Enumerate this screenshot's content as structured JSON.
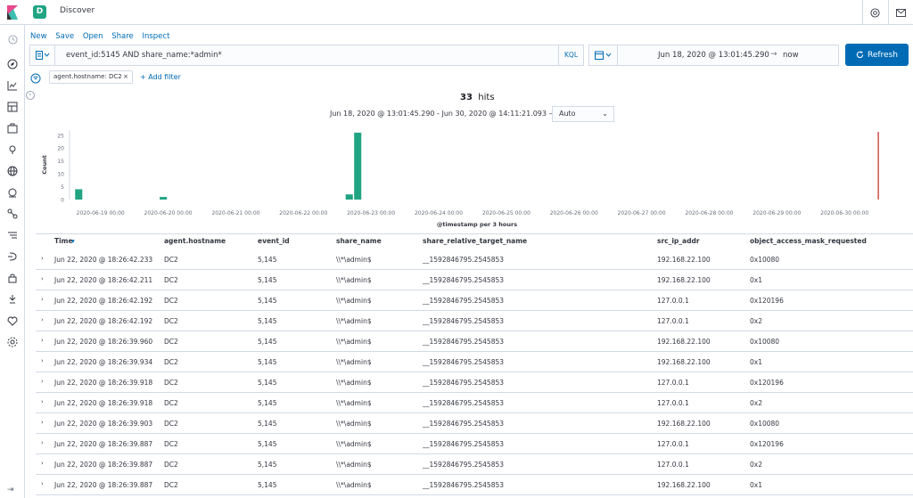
{
  "header": {
    "app_title": "Discover",
    "space_initial": "D"
  },
  "menu": {
    "items": [
      "New",
      "Save",
      "Open",
      "Share",
      "Inspect"
    ]
  },
  "query": {
    "text": "event_id:5145 AND share_name:*admin*",
    "language": "KQL"
  },
  "time": {
    "start": "Jun 18, 2020 @ 13:01:45.290",
    "arrow": "→",
    "end": "now",
    "refresh_label": "Refresh"
  },
  "filters": {
    "pill_label": "agent.hostname: DC2",
    "pill_remove": "×",
    "add_label": "+ Add filter"
  },
  "summary": {
    "hits_count": "33",
    "hits_label": "hits",
    "range": "Jun 18, 2020 @ 13:01:45.290 - Jun 30, 2020 @ 14:11:21.093 —",
    "interval": "Auto"
  },
  "chart_data": {
    "type": "bar",
    "ylabel": "Count",
    "xlabel": "@timestamp per 3 hours",
    "yticks": [
      0,
      5,
      10,
      15,
      20,
      25
    ],
    "ylim": [
      0,
      27
    ],
    "xticks": [
      "2020-06-19 00:00",
      "2020-06-20 00:00",
      "2020-06-21 00:00",
      "2020-06-22 00:00",
      "2020-06-23 00:00",
      "2020-06-24 00:00",
      "2020-06-25 00:00",
      "2020-06-26 00:00",
      "2020-06-27 00:00",
      "2020-06-28 00:00",
      "2020-06-29 00:00",
      "2020-06-30 00:00"
    ],
    "bar_color": "#20a482",
    "now_marker_color": "#bd271e",
    "x_start": "2020-06-18 13:01",
    "x_end": "2020-06-30 14:11",
    "now": "2020-06-30 12:00",
    "bars": [
      {
        "x": "2020-06-18 15:00",
        "value": 4
      },
      {
        "x": "2020-06-19 21:00",
        "value": 1
      },
      {
        "x": "2020-06-22 15:00",
        "value": 2
      },
      {
        "x": "2020-06-22 18:00",
        "value": 26
      }
    ]
  },
  "table": {
    "columns": [
      "Time",
      "agent.hostname",
      "event_id",
      "share_name",
      "share_relative_target_name",
      "src_ip_addr",
      "object_access_mask_requested"
    ],
    "sort_indicator": "▾",
    "rows": [
      [
        "Jun 22, 2020 @ 18:26:42.233",
        "DC2",
        "5,145",
        "\\\\*\\admin$",
        "__1592846795.2545853",
        "192.168.22.100",
        "0x10080"
      ],
      [
        "Jun 22, 2020 @ 18:26:42.211",
        "DC2",
        "5,145",
        "\\\\*\\admin$",
        "__1592846795.2545853",
        "192.168.22.100",
        "0x1"
      ],
      [
        "Jun 22, 2020 @ 18:26:42.192",
        "DC2",
        "5,145",
        "\\\\*\\admin$",
        "__1592846795.2545853",
        "127.0.0.1",
        "0x120196"
      ],
      [
        "Jun 22, 2020 @ 18:26:42.192",
        "DC2",
        "5,145",
        "\\\\*\\admin$",
        "__1592846795.2545853",
        "127.0.0.1",
        "0x2"
      ],
      [
        "Jun 22, 2020 @ 18:26:39.960",
        "DC2",
        "5,145",
        "\\\\*\\admin$",
        "__1592846795.2545853",
        "192.168.22.100",
        "0x10080"
      ],
      [
        "Jun 22, 2020 @ 18:26:39.934",
        "DC2",
        "5,145",
        "\\\\*\\admin$",
        "__1592846795.2545853",
        "192.168.22.100",
        "0x1"
      ],
      [
        "Jun 22, 2020 @ 18:26:39.918",
        "DC2",
        "5,145",
        "\\\\*\\admin$",
        "__1592846795.2545853",
        "127.0.0.1",
        "0x120196"
      ],
      [
        "Jun 22, 2020 @ 18:26:39.918",
        "DC2",
        "5,145",
        "\\\\*\\admin$",
        "__1592846795.2545853",
        "127.0.0.1",
        "0x2"
      ],
      [
        "Jun 22, 2020 @ 18:26:39.903",
        "DC2",
        "5,145",
        "\\\\*\\admin$",
        "__1592846795.2545853",
        "192.168.22.100",
        "0x10080"
      ],
      [
        "Jun 22, 2020 @ 18:26:39.887",
        "DC2",
        "5,145",
        "\\\\*\\admin$",
        "__1592846795.2545853",
        "127.0.0.1",
        "0x120196"
      ],
      [
        "Jun 22, 2020 @ 18:26:39.887",
        "DC2",
        "5,145",
        "\\\\*\\admin$",
        "__1592846795.2545853",
        "127.0.0.1",
        "0x2"
      ],
      [
        "Jun 22, 2020 @ 18:26:39.887",
        "DC2",
        "5,145",
        "\\\\*\\admin$",
        "__1592846795.2545853",
        "192.168.22.100",
        "0x1"
      ]
    ]
  },
  "sidebar": {
    "icons": [
      "recent-icon",
      "discover-icon",
      "visualize-icon",
      "dashboard-icon",
      "canvas-icon",
      "maps-icon",
      "siem-icon",
      "ml-icon",
      "graph-icon",
      "logs-icon",
      "apm-icon",
      "uptime-icon",
      "dev-tools-icon",
      "monitoring-icon",
      "management-icon"
    ]
  }
}
